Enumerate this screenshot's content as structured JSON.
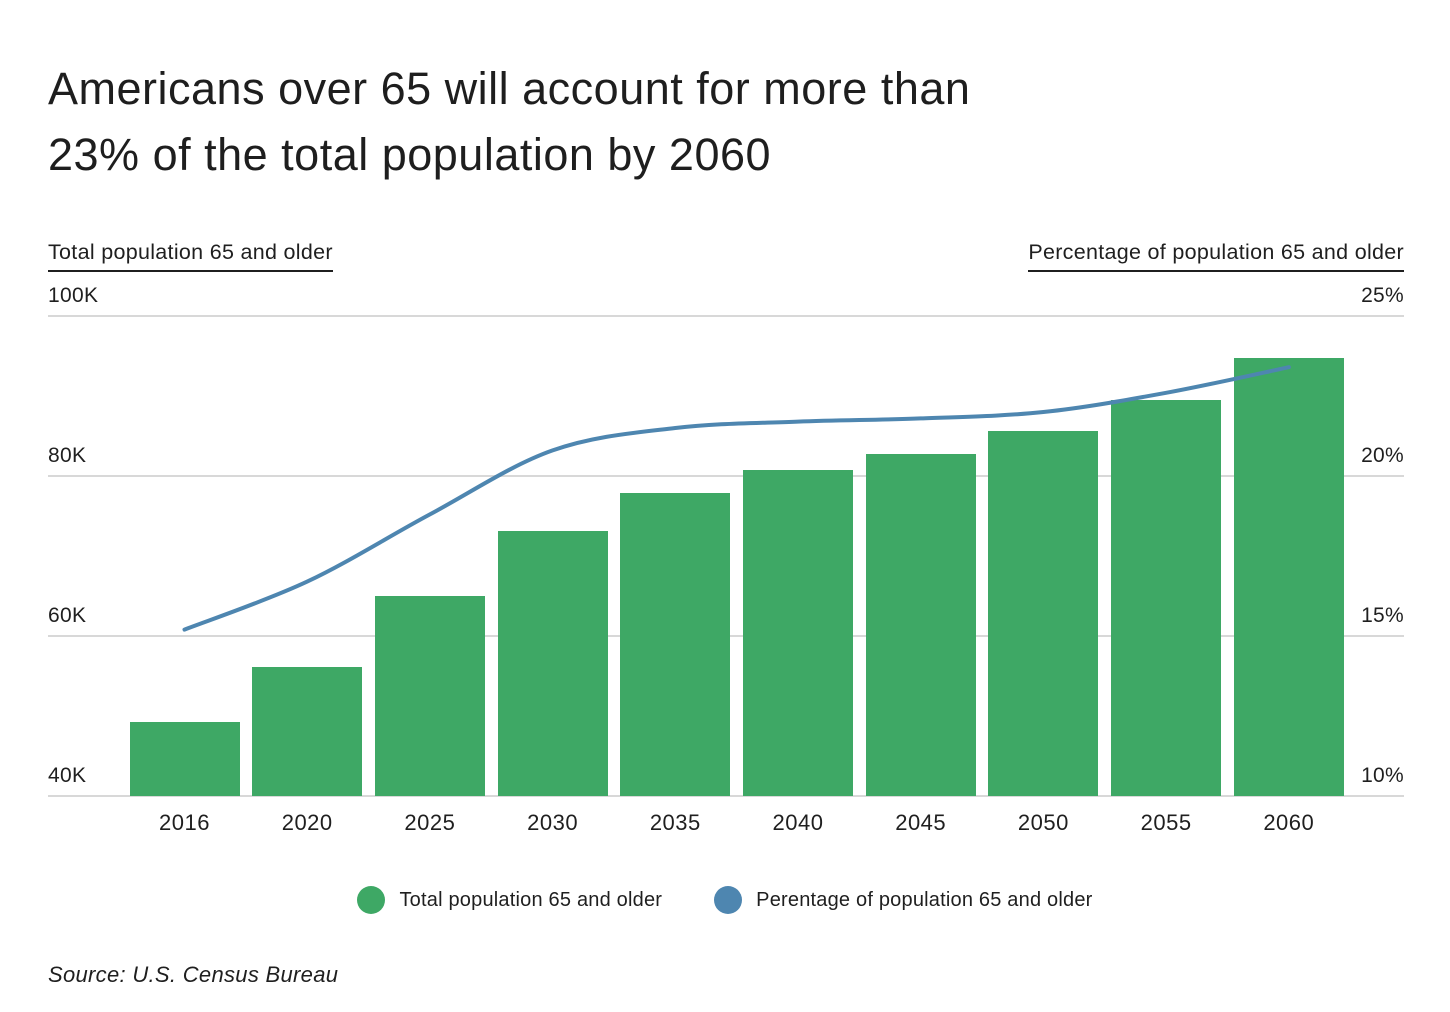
{
  "header": {
    "title": "Americans over 65 will account for more than 23% of the total population by 2060",
    "title_lines": [
      "Americans over 65 will account for more than",
      "23% of the total population by 2060"
    ]
  },
  "axis_captions": {
    "left": "Total population 65 and older",
    "right": "Percentage of population 65 and older"
  },
  "chart_data": {
    "type": "bar",
    "categories": [
      "2016",
      "2020",
      "2025",
      "2030",
      "2035",
      "2040",
      "2045",
      "2050",
      "2055",
      "2060"
    ],
    "series": [
      {
        "name": "Total population 65 and older",
        "type": "bar",
        "axis": "left",
        "unit": "K",
        "color": "#3ea865",
        "values": [
          49.2,
          56.1,
          65.0,
          73.1,
          77.9,
          80.8,
          82.8,
          85.6,
          89.5,
          94.7
        ]
      },
      {
        "name": "Perentage of population 65 and older",
        "type": "line",
        "axis": "right",
        "unit": "%",
        "color": "#4e86b0",
        "values": [
          15.2,
          16.7,
          18.8,
          20.8,
          21.5,
          21.7,
          21.8,
          22.0,
          22.6,
          23.4
        ]
      }
    ],
    "left_axis": {
      "label": "Total population 65 and older",
      "ticks": [
        "100K",
        "80K",
        "60K",
        "40K"
      ],
      "tick_values": [
        100,
        80,
        60,
        40
      ],
      "range": [
        40,
        100
      ]
    },
    "right_axis": {
      "label": "Percentage of population 65 and older",
      "ticks": [
        "25%",
        "20%",
        "15%",
        "10%"
      ],
      "tick_values": [
        25,
        20,
        15,
        10
      ],
      "range": [
        10,
        25
      ]
    },
    "grid": true,
    "legend_position": "bottom",
    "title": "Americans over 65 will account for more than 23% of the total population by 2060"
  },
  "legend": [
    {
      "label": "Total population 65 and older",
      "color": "#3ea865"
    },
    {
      "label": "Perentage of population 65 and older",
      "color": "#4e86b0"
    }
  ],
  "source": "Source: U.S. Census Bureau",
  "colors": {
    "bar_green": "#3ea865",
    "line_blue": "#4e86b0",
    "gridline": "#d8d8d8",
    "text": "#1f1f1f",
    "background": "#ffffff"
  }
}
